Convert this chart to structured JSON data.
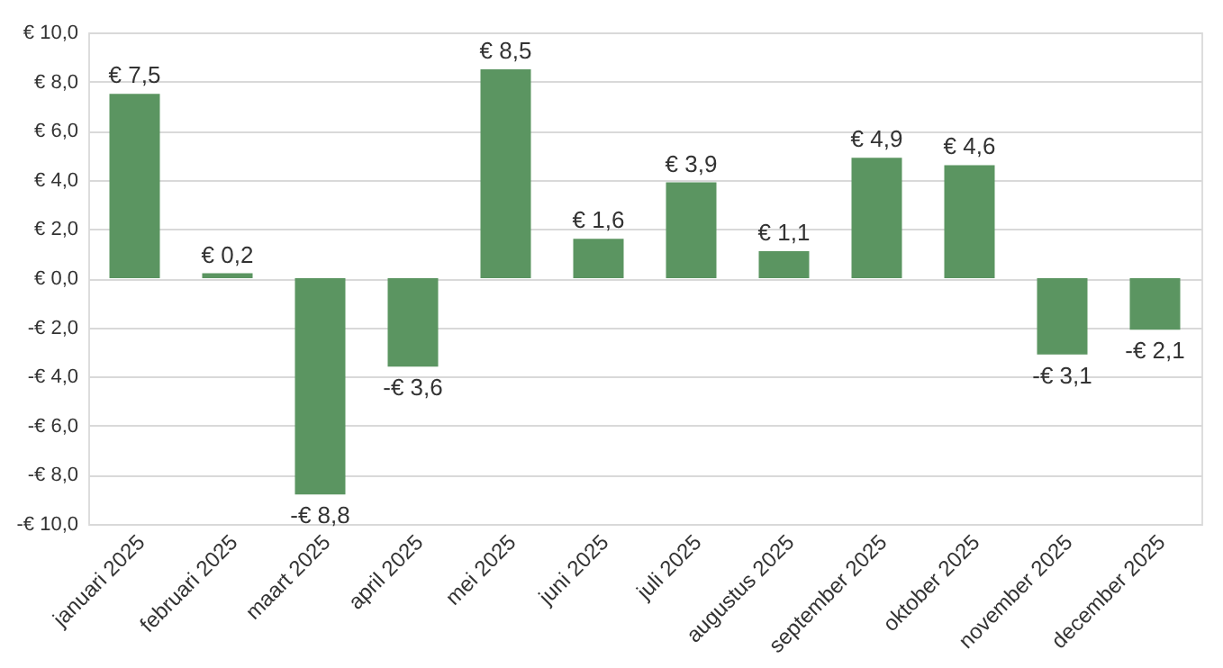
{
  "chart_data": {
    "type": "bar",
    "categories": [
      "januari 2025",
      "februari 2025",
      "maart 2025",
      "april 2025",
      "mei 2025",
      "juni 2025",
      "juli 2025",
      "augustus 2025",
      "september 2025",
      "oktober 2025",
      "november 2025",
      "december 2025"
    ],
    "values": [
      7.5,
      0.2,
      -8.8,
      -3.6,
      8.5,
      1.6,
      3.9,
      1.1,
      4.9,
      4.6,
      -3.1,
      -2.1
    ],
    "value_labels": [
      "€ 7,5",
      "€ 0,2",
      "-€ 8,8",
      "-€ 3,6",
      "€ 8,5",
      "€ 1,6",
      "€ 3,9",
      "€ 1,1",
      "€ 4,9",
      "€ 4,6",
      "-€ 3,1",
      "-€ 2,1"
    ],
    "color": "#5b9561",
    "ylim": [
      -10,
      10
    ],
    "yticks": [
      {
        "value": -10,
        "label": "-€ 10,0"
      },
      {
        "value": -8,
        "label": "-€ 8,0"
      },
      {
        "value": -6,
        "label": "-€ 6,0"
      },
      {
        "value": -4,
        "label": "-€ 4,0"
      },
      {
        "value": -2,
        "label": "-€ 2,0"
      },
      {
        "value": 0,
        "label": "€ 0,0"
      },
      {
        "value": 2,
        "label": "€ 2,0"
      },
      {
        "value": 4,
        "label": "€ 4,0"
      },
      {
        "value": 6,
        "label": "€ 6,0"
      },
      {
        "value": 8,
        "label": "€ 8,0"
      },
      {
        "value": 10,
        "label": "€ 10,0"
      }
    ],
    "grid": "y"
  }
}
